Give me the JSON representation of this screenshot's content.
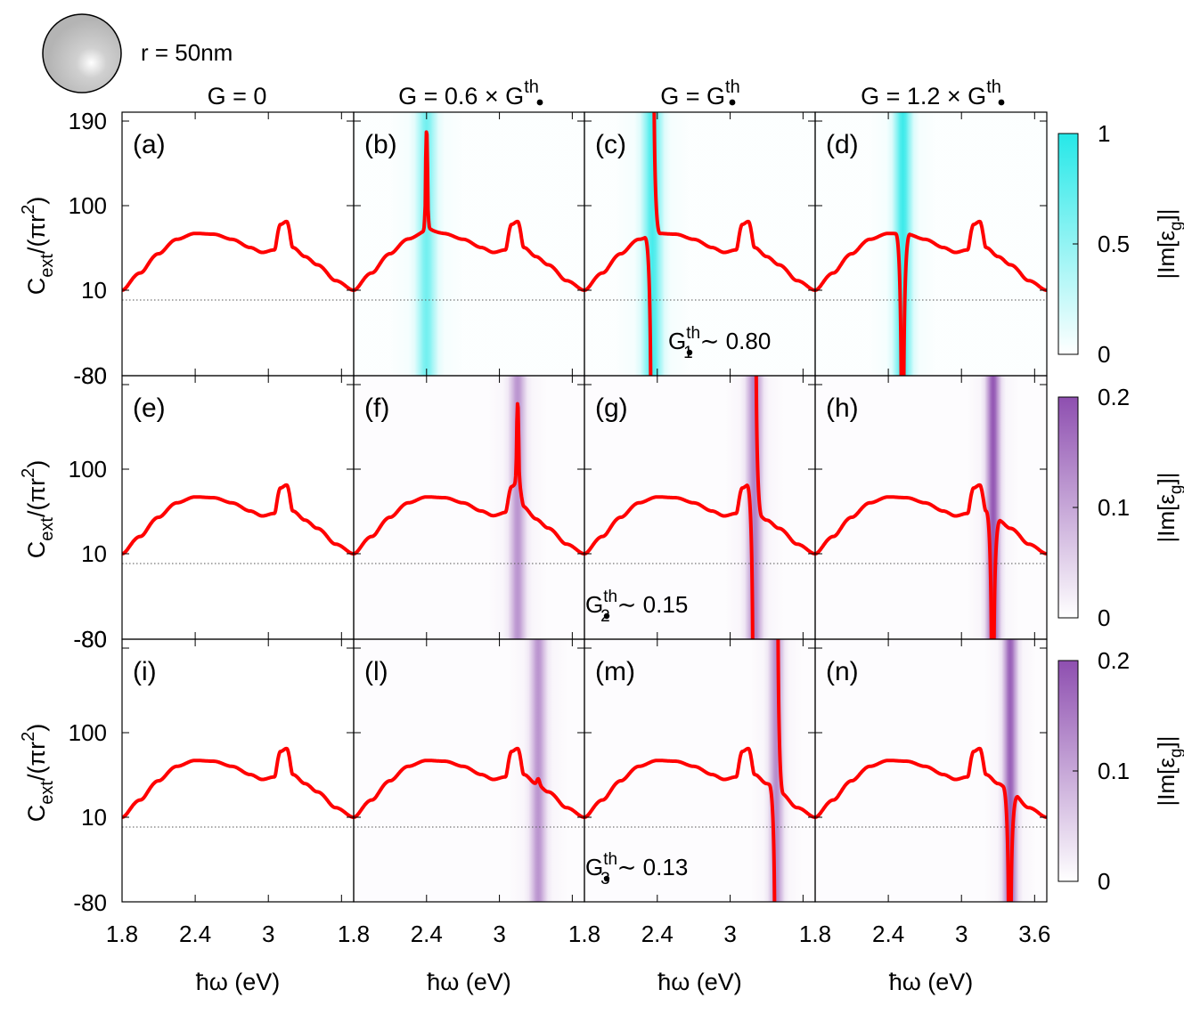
{
  "header": {
    "sphere_label": "r = 50nm",
    "column_titles": [
      {
        "base": "G = 0",
        "sub": ""
      },
      {
        "base": "G = 0.6 × G",
        "sup": "th"
      },
      {
        "base": "G = G",
        "sup": "th"
      },
      {
        "base": "G = 1.2 × G",
        "sup": "th"
      }
    ]
  },
  "axes": {
    "xlabel": "ħω (eV)",
    "ylabel": {
      "base": "C",
      "sub1": "ext",
      "mid": "/(πr",
      "sup": "2",
      "end": ")"
    },
    "ytick_labels": [
      "190",
      "100",
      "10",
      "-80"
    ],
    "xtick_labels_first": [
      "1.8",
      "2.4",
      "3"
    ],
    "xtick_labels_last": [
      "1.8",
      "2.4",
      "3",
      "3.6"
    ]
  },
  "colorbars": [
    {
      "ticks": [
        "1",
        "0.5",
        "0"
      ],
      "max": 1,
      "color": "#26e8e8",
      "label": "|Im[ε",
      "label_sub": "g",
      "label_end": "]|"
    },
    {
      "ticks": [
        "0.2",
        "0.1",
        "0"
      ],
      "max": 0.2,
      "color": "#8e4fb0",
      "label": "|Im[ε",
      "label_sub": "g",
      "label_end": "]|"
    },
    {
      "ticks": [
        "0.2",
        "0.1",
        "0"
      ],
      "max": 0.2,
      "color": "#8e4fb0",
      "label": "|Im[ε",
      "label_sub": "g",
      "label_end": "]|"
    }
  ],
  "thresholds": [
    {
      "sub": "1",
      "text": "∼ 0.80"
    },
    {
      "sub": "2",
      "text": "∼ 0.15"
    },
    {
      "sub": "3",
      "text": "∼ 0.13"
    }
  ],
  "chart_data": {
    "type": "line",
    "xlabel": "ħω (eV)",
    "ylabel": "Cext/(πr²)",
    "xlim": [
      1.8,
      3.7
    ],
    "y_ticks": [
      190,
      100,
      10,
      -80
    ],
    "reference_line": 8,
    "colors": {
      "curve": "#ff0000",
      "band_dipole": "#26e8e8",
      "band_higher": "#8e4fb0"
    },
    "panels": [
      {
        "label": "(a)",
        "row": 0,
        "col": 0,
        "band": null
      },
      {
        "label": "(b)",
        "row": 0,
        "col": 1,
        "band": {
          "center": 2.4,
          "width": 0.1,
          "peak": 0.6
        },
        "resonance": {
          "x": 2.4,
          "kind": "peak",
          "y": 172
        }
      },
      {
        "label": "(c)",
        "row": 0,
        "col": 2,
        "band": {
          "center": 2.36,
          "width": 0.1,
          "peak": 0.8
        },
        "resonance": {
          "x": 2.36,
          "kind": "pole"
        }
      },
      {
        "label": "(d)",
        "row": 0,
        "col": 3,
        "band": {
          "center": 2.52,
          "width": 0.09,
          "peak": 0.85
        },
        "resonance": {
          "x": 2.52,
          "kind": "dip"
        }
      },
      {
        "label": "(e)",
        "row": 1,
        "col": 0,
        "band": null
      },
      {
        "label": "(f)",
        "row": 1,
        "col": 1,
        "band": {
          "center": 3.15,
          "width": 0.08,
          "peak": 0.55
        },
        "resonance": {
          "x": 3.15,
          "kind": "peak",
          "y": 160
        }
      },
      {
        "label": "(g)",
        "row": 1,
        "col": 2,
        "band": {
          "center": 3.2,
          "width": 0.08,
          "peak": 0.65
        },
        "resonance": {
          "x": 3.2,
          "kind": "pole"
        }
      },
      {
        "label": "(h)",
        "row": 1,
        "col": 3,
        "band": {
          "center": 3.26,
          "width": 0.07,
          "peak": 0.9
        },
        "resonance": {
          "x": 3.26,
          "kind": "dip"
        }
      },
      {
        "label": "(i)",
        "row": 2,
        "col": 0,
        "band": null
      },
      {
        "label": "(l)",
        "row": 2,
        "col": 1,
        "band": {
          "center": 3.32,
          "width": 0.08,
          "peak": 0.55
        },
        "resonance": {
          "x": 3.32,
          "kind": "kink"
        }
      },
      {
        "label": "(m)",
        "row": 2,
        "col": 2,
        "band": {
          "center": 3.38,
          "width": 0.07,
          "peak": 0.6
        },
        "resonance": {
          "x": 3.38,
          "kind": "pole"
        }
      },
      {
        "label": "(n)",
        "row": 2,
        "col": 3,
        "band": {
          "center": 3.4,
          "width": 0.07,
          "peak": 0.85
        },
        "resonance": {
          "x": 3.4,
          "kind": "dip"
        }
      }
    ],
    "base_curve": {
      "x": [
        1.8,
        1.95,
        2.1,
        2.25,
        2.4,
        2.55,
        2.7,
        2.85,
        2.95,
        3.05,
        3.1,
        3.15,
        3.2,
        3.3,
        3.4,
        3.55,
        3.7
      ],
      "y": [
        10,
        16,
        27,
        40,
        47,
        46,
        40,
        32,
        28,
        30,
        60,
        65,
        32,
        25,
        20,
        13,
        10
      ]
    }
  }
}
